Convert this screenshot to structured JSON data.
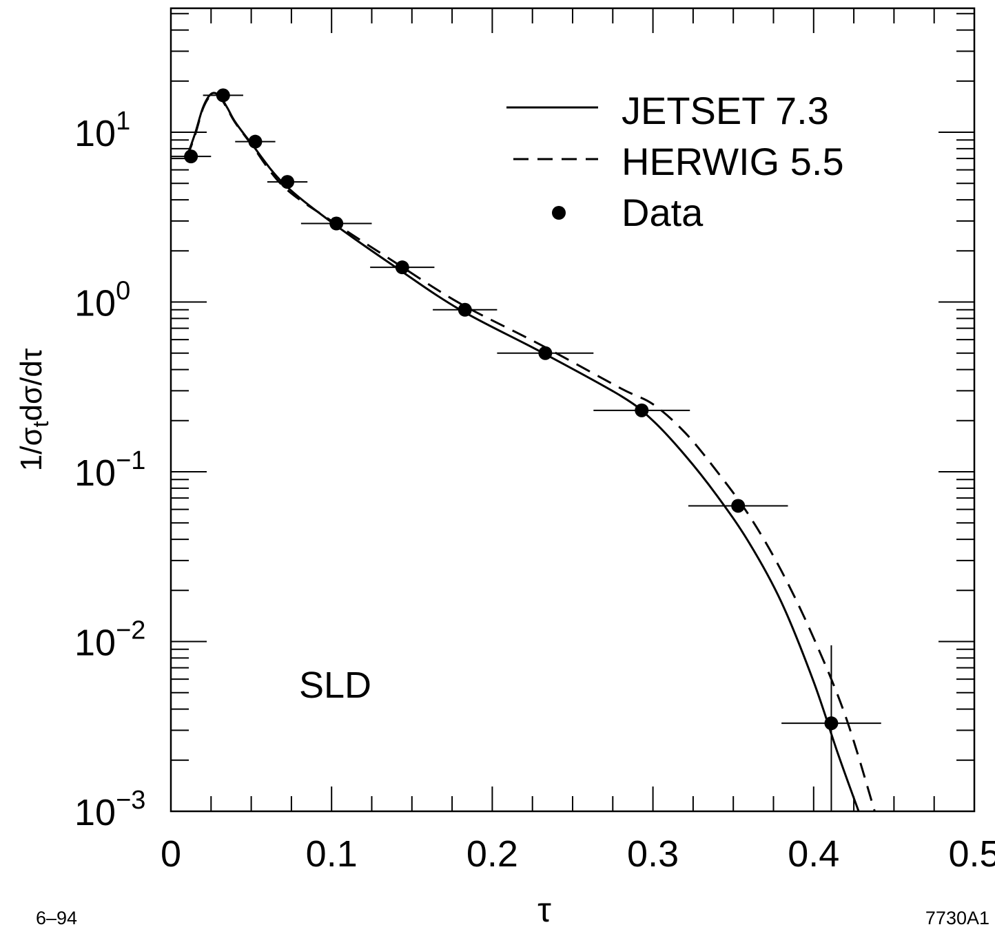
{
  "chart_data": {
    "type": "line",
    "xlabel": "τ",
    "ylabel": "1/σ_t dσ/dτ",
    "xlim": [
      0,
      0.5
    ],
    "ylim": [
      0.001,
      50
    ],
    "yscale": "log",
    "x_ticks": [
      "0",
      "0.1",
      "0.2",
      "0.3",
      "0.4",
      "0.5"
    ],
    "y_ticks": [
      {
        "base": "10",
        "exp": "−3"
      },
      {
        "base": "10",
        "exp": "−2"
      },
      {
        "base": "10",
        "exp": "−1"
      },
      {
        "base": "10",
        "exp": "0"
      },
      {
        "base": "10",
        "exp": "1"
      }
    ],
    "legend_position": "top-right",
    "annotation": "SLD",
    "footer_left": "6–94",
    "footer_right": "7730A1",
    "series": [
      {
        "name": "JETSET 7.3",
        "style": "solid",
        "x": [
          0.01,
          0.015,
          0.02,
          0.025,
          0.03,
          0.035,
          0.04,
          0.05,
          0.07,
          0.1,
          0.14,
          0.18,
          0.23,
          0.28,
          0.3,
          0.32,
          0.34,
          0.36,
          0.38,
          0.4,
          0.415,
          0.428
        ],
        "y": [
          7.2,
          9.8,
          14.0,
          16.8,
          16.5,
          14.0,
          11.5,
          8.6,
          5.0,
          2.95,
          1.6,
          0.9,
          0.51,
          0.28,
          0.2,
          0.125,
          0.072,
          0.038,
          0.017,
          0.0058,
          0.0022,
          0.001
        ]
      },
      {
        "name": "HERWIG 5.5",
        "style": "dashed",
        "x": [
          0.01,
          0.015,
          0.02,
          0.025,
          0.03,
          0.035,
          0.04,
          0.05,
          0.07,
          0.1,
          0.14,
          0.18,
          0.23,
          0.28,
          0.3,
          0.32,
          0.34,
          0.36,
          0.38,
          0.4,
          0.42,
          0.438
        ],
        "y": [
          7.1,
          9.6,
          13.8,
          16.5,
          16.3,
          13.8,
          11.4,
          8.5,
          4.8,
          3.0,
          1.7,
          0.98,
          0.56,
          0.31,
          0.25,
          0.17,
          0.1,
          0.055,
          0.026,
          0.0105,
          0.0036,
          0.001
        ]
      },
      {
        "name": "Data",
        "style": "points",
        "points": [
          {
            "x": 0.0125,
            "y": 7.2,
            "x_err": 0.0125,
            "y_err_low": null,
            "y_err_high": null
          },
          {
            "x": 0.0325,
            "y": 16.5,
            "x_err": 0.0125,
            "y_err_low": null,
            "y_err_high": null
          },
          {
            "x": 0.0525,
            "y": 8.8,
            "x_err": 0.0125,
            "y_err_low": null,
            "y_err_high": null
          },
          {
            "x": 0.0725,
            "y": 5.1,
            "x_err": 0.0125,
            "y_err_low": null,
            "y_err_high": null
          },
          {
            "x": 0.103,
            "y": 2.9,
            "x_err": 0.022,
            "y_err_low": null,
            "y_err_high": null
          },
          {
            "x": 0.144,
            "y": 1.6,
            "x_err": 0.02,
            "y_err_low": null,
            "y_err_high": null
          },
          {
            "x": 0.183,
            "y": 0.9,
            "x_err": 0.02,
            "y_err_low": null,
            "y_err_high": null
          },
          {
            "x": 0.233,
            "y": 0.5,
            "x_err": 0.03,
            "y_err_low": null,
            "y_err_high": null
          },
          {
            "x": 0.293,
            "y": 0.23,
            "x_err": 0.03,
            "y_err_low": null,
            "y_err_high": null
          },
          {
            "x": 0.353,
            "y": 0.063,
            "x_err": 0.031,
            "y_err_low": null,
            "y_err_high": null
          },
          {
            "x": 0.411,
            "y": 0.0033,
            "x_err": 0.031,
            "y_err_low": 0.001,
            "y_err_high": 0.0095
          }
        ]
      }
    ]
  }
}
